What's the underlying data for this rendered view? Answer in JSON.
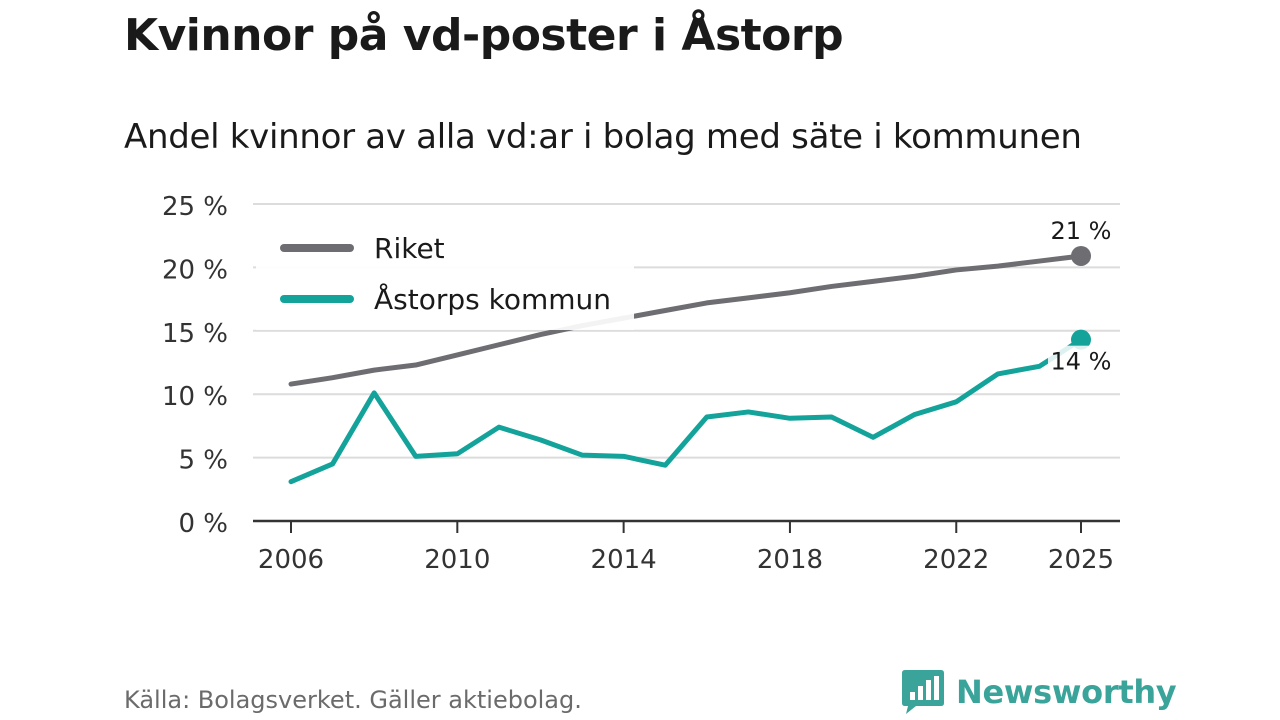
{
  "title": "Kvinnor på vd-poster i Åstorp",
  "subtitle": "Andel kvinnor av alla vd:ar i bolag med säte i kommunen",
  "source": "Källa: Bolagsverket. Gäller aktiebolag.",
  "brand": {
    "name": "Newsworthy",
    "icon": "newsworthy-logo-icon",
    "color": "#3aa39a"
  },
  "chart_data": {
    "type": "line",
    "title": "Kvinnor på vd-poster i Åstorp",
    "subtitle": "Andel kvinnor av alla vd:ar i bolag med säte i kommunen",
    "xlabel": "",
    "ylabel": "",
    "x": [
      2006,
      2007,
      2008,
      2009,
      2010,
      2011,
      2012,
      2013,
      2014,
      2015,
      2016,
      2017,
      2018,
      2019,
      2020,
      2021,
      2022,
      2023,
      2024,
      2025
    ],
    "xticks": [
      2006,
      2010,
      2014,
      2018,
      2022,
      2025
    ],
    "xlim": [
      2006,
      2025
    ],
    "ylim": [
      0,
      25
    ],
    "yticks": [
      0,
      5,
      10,
      15,
      20,
      25
    ],
    "ytick_labels": [
      "0 %",
      "5 %",
      "10 %",
      "15 %",
      "20 %",
      "25 %"
    ],
    "grid": true,
    "legend_position": "top-left",
    "series": [
      {
        "name": "Riket",
        "color": "#6e6d72",
        "values": [
          10.8,
          11.3,
          11.9,
          12.3,
          13.1,
          13.9,
          14.7,
          15.4,
          16.0,
          16.6,
          17.2,
          17.6,
          18.0,
          18.5,
          18.9,
          19.3,
          19.8,
          20.1,
          20.5,
          20.9
        ],
        "end_label": "21 %"
      },
      {
        "name": "Åstorps kommun",
        "color": "#14a39a",
        "values": [
          3.1,
          4.5,
          10.1,
          5.1,
          5.3,
          7.4,
          6.4,
          5.2,
          5.1,
          4.4,
          8.2,
          8.6,
          8.1,
          8.2,
          6.6,
          8.4,
          9.4,
          11.6,
          12.2,
          14.3
        ],
        "end_label": "14 %"
      }
    ]
  }
}
